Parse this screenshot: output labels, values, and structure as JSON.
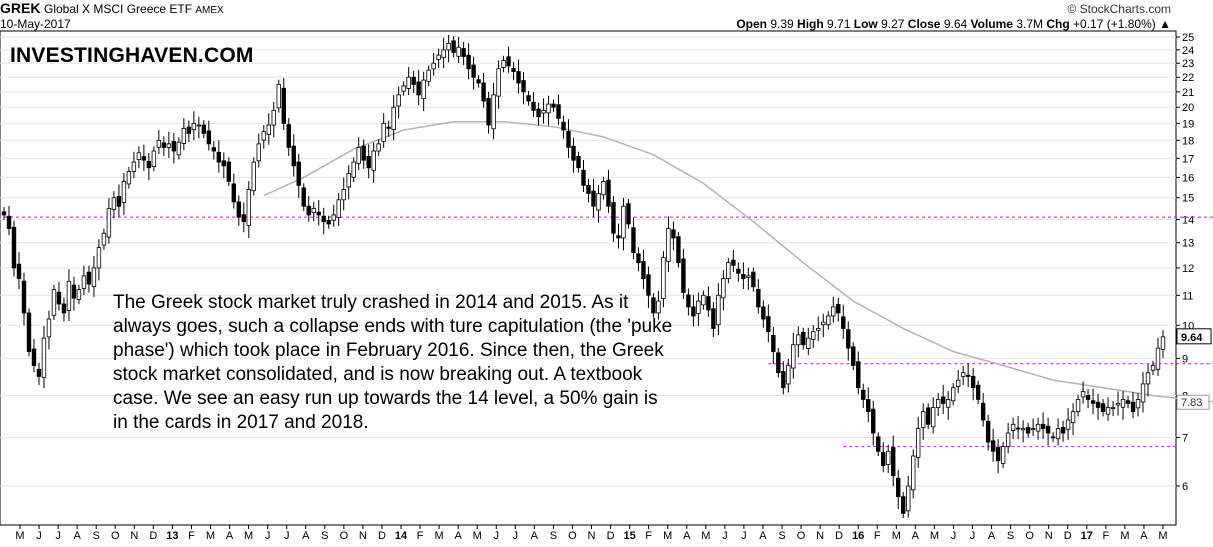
{
  "header": {
    "ticker": "GREK",
    "title": "Global X MSCI Greece ETF",
    "exchange": "AMEX",
    "date": "10-May-2017",
    "source": "© StockCharts.com",
    "open_label": "Open",
    "open": "9.39",
    "high_label": "High",
    "high": "9.71",
    "low_label": "Low",
    "low": "9.27",
    "close_label": "Close",
    "close": "9.64",
    "volume_label": "Volume",
    "volume": "3.7M",
    "chg_label": "Chg",
    "chg": "+0.17 (+1.80%)"
  },
  "watermark": "INVESTINGHAVEN.COM",
  "annotation": "The Greek stock market truly crashed in 2014 and 2015. As it always goes, such a collapse ends with ture capitulation (the 'puke phase') which took place in February 2016. Since then, the Greek stock market consolidated, and is now breaking out. A textbook case. We see an easy run up towards the 14 level, a 50% gain is in the cards in 2017 and 2018.",
  "colors": {
    "candle": "#000000",
    "moving_average": "#b4b4b4",
    "support_line": "#d60fd6",
    "highlight": "#f2a0f2",
    "highlight_stroke": "#e040e0",
    "grid": "#e6e6e6"
  },
  "chart_data": {
    "type": "candlestick",
    "y_scale": "log",
    "ylim": [
      5,
      25.5
    ],
    "y_ticks": [
      6,
      7,
      8,
      9,
      10,
      11,
      12,
      13,
      14,
      15,
      16,
      17,
      18,
      19,
      20,
      21,
      22,
      23,
      24,
      25
    ],
    "x_labels": [
      "M",
      "J",
      "J",
      "A",
      "S",
      "O",
      "N",
      "D",
      "13",
      "F",
      "M",
      "A",
      "M",
      "J",
      "J",
      "A",
      "S",
      "O",
      "N",
      "D",
      "14",
      "F",
      "M",
      "A",
      "M",
      "J",
      "J",
      "A",
      "S",
      "O",
      "N",
      "D",
      "15",
      "F",
      "M",
      "A",
      "M",
      "J",
      "J",
      "A",
      "S",
      "O",
      "N",
      "D",
      "16",
      "F",
      "M",
      "A",
      "M",
      "J",
      "J",
      "A",
      "S",
      "O",
      "N",
      "D",
      "17",
      "F",
      "M",
      "A",
      "M"
    ],
    "bold_x_labels": [
      "13",
      "14",
      "15",
      "16",
      "17"
    ],
    "last_value_label": "9.64",
    "ma_value_label": "7.83",
    "weekly_closes": [
      14.2,
      13.6,
      12,
      11.6,
      10.4,
      9.2,
      8.8,
      8.5,
      9.6,
      10.2,
      11.2,
      10.7,
      10.4,
      11.5,
      10.9,
      11.2,
      11.7,
      11.4,
      12,
      12.8,
      13.4,
      14.5,
      15,
      14.6,
      15.8,
      16.3,
      16.8,
      17.3,
      16.9,
      16.5,
      17.4,
      18,
      17.6,
      17.8,
      17.4,
      17.9,
      18.7,
      18.4,
      19,
      18.9,
      18.4,
      17.8,
      17.4,
      16.8,
      16.6,
      15.8,
      14.8,
      14.1,
      13.9,
      15.4,
      16.8,
      17.8,
      18.5,
      18.9,
      19.8,
      21.5,
      19,
      17.6,
      16.6,
      15.6,
      14.6,
      14.2,
      14.5,
      14.2,
      13.9,
      13.8,
      14.2,
      14.9,
      15.4,
      16.2,
      16.8,
      17.6,
      16.9,
      16.5,
      17.4,
      17.8,
      19,
      18.7,
      20,
      20.8,
      21.4,
      22,
      21.5,
      20.8,
      21.8,
      22.5,
      23,
      23.6,
      24,
      24.5,
      23.8,
      24.2,
      23.5,
      22.6,
      22,
      21.6,
      20.4,
      18.9,
      20.8,
      22.6,
      23.2,
      22.8,
      22.4,
      21.6,
      21,
      20.4,
      19.8,
      19.4,
      19.8,
      20.2,
      20,
      19.3,
      18.6,
      17.6,
      16.9,
      16.5,
      15.6,
      15.2,
      14.6,
      15.2,
      15.8,
      14.6,
      13.4,
      13.2,
      14.6,
      13.8,
      12.6,
      12.2,
      11.6,
      11,
      10.4,
      10.8,
      12.4,
      13.6,
      13.2,
      12.2,
      11.1,
      10.6,
      10.3,
      10.8,
      11,
      10.5,
      9.9,
      11,
      11.6,
      12.2,
      12.1,
      11.8,
      11.6,
      11.7,
      11.3,
      10.6,
      10.2,
      9.8,
      9.2,
      8.6,
      8.2,
      8.8,
      9.4,
      9.7,
      9.4,
      9.6,
      9.8,
      9.9,
      10.1,
      10.3,
      10.6,
      10.4,
      9.9,
      9.3,
      8.8,
      8.2,
      7.9,
      7.6,
      7.1,
      6.7,
      6.4,
      6.7,
      6.2,
      5.8,
      5.5,
      6,
      6.6,
      7.2,
      7.6,
      7.3,
      7.7,
      7.9,
      7.8,
      7.9,
      8.2,
      8.4,
      8.6,
      8.5,
      8.2,
      7.9,
      7.4,
      6.9,
      6.7,
      6.5,
      6.8,
      7.1,
      7.3,
      7.2,
      7.2,
      7.1,
      7.2,
      7.3,
      7.2,
      7.1,
      7,
      7.2,
      7.1,
      7.4,
      7.6,
      7.9,
      8.1,
      7.9,
      7.8,
      7.7,
      7.6,
      7.7,
      7.7,
      7.8,
      7.9,
      7.8,
      7.6,
      7.9,
      8.3,
      8.6,
      8.8,
      9.3,
      9.64
    ],
    "moving_average": [
      [
        52,
        15.1
      ],
      [
        60,
        16
      ],
      [
        70,
        17.5
      ],
      [
        80,
        18.6
      ],
      [
        90,
        19.1
      ],
      [
        100,
        19.1
      ],
      [
        110,
        18.8
      ],
      [
        120,
        18.2
      ],
      [
        130,
        17.2
      ],
      [
        140,
        15.7
      ],
      [
        150,
        13.9
      ],
      [
        160,
        12.2
      ],
      [
        170,
        10.8
      ],
      [
        180,
        9.9
      ],
      [
        190,
        9.2
      ],
      [
        200,
        8.8
      ],
      [
        210,
        8.4
      ],
      [
        220,
        8.2
      ],
      [
        230,
        8
      ],
      [
        240,
        7.85
      ],
      [
        247,
        7.83
      ]
    ],
    "support_lines": [
      {
        "value": 14.1,
        "from_week": 0,
        "to_week": 247
      },
      {
        "value": 8.85,
        "from_week": 153,
        "to_week": 245
      },
      {
        "value": 6.8,
        "from_week": 168,
        "to_week": 235
      }
    ],
    "highlight": {
      "value": 9.4,
      "week": 245
    }
  }
}
